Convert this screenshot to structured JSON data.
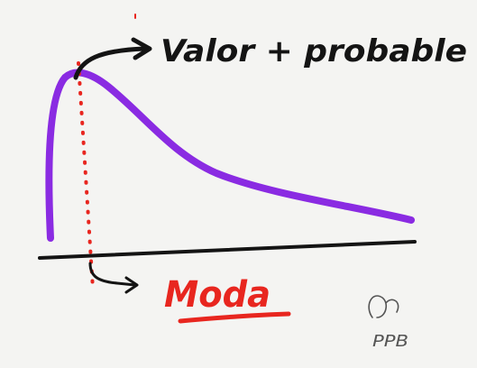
{
  "annotations": {
    "top_label": "Valor + probable",
    "mode_label": "Moda",
    "signature": "PPB"
  },
  "colors": {
    "background": "#f4f4f2",
    "curve": "#8a2be2",
    "axis": "#141414",
    "arrow": "#141414",
    "mode_line": "#e8261f",
    "mode_text": "#e8261f",
    "signature": "#555555"
  }
}
